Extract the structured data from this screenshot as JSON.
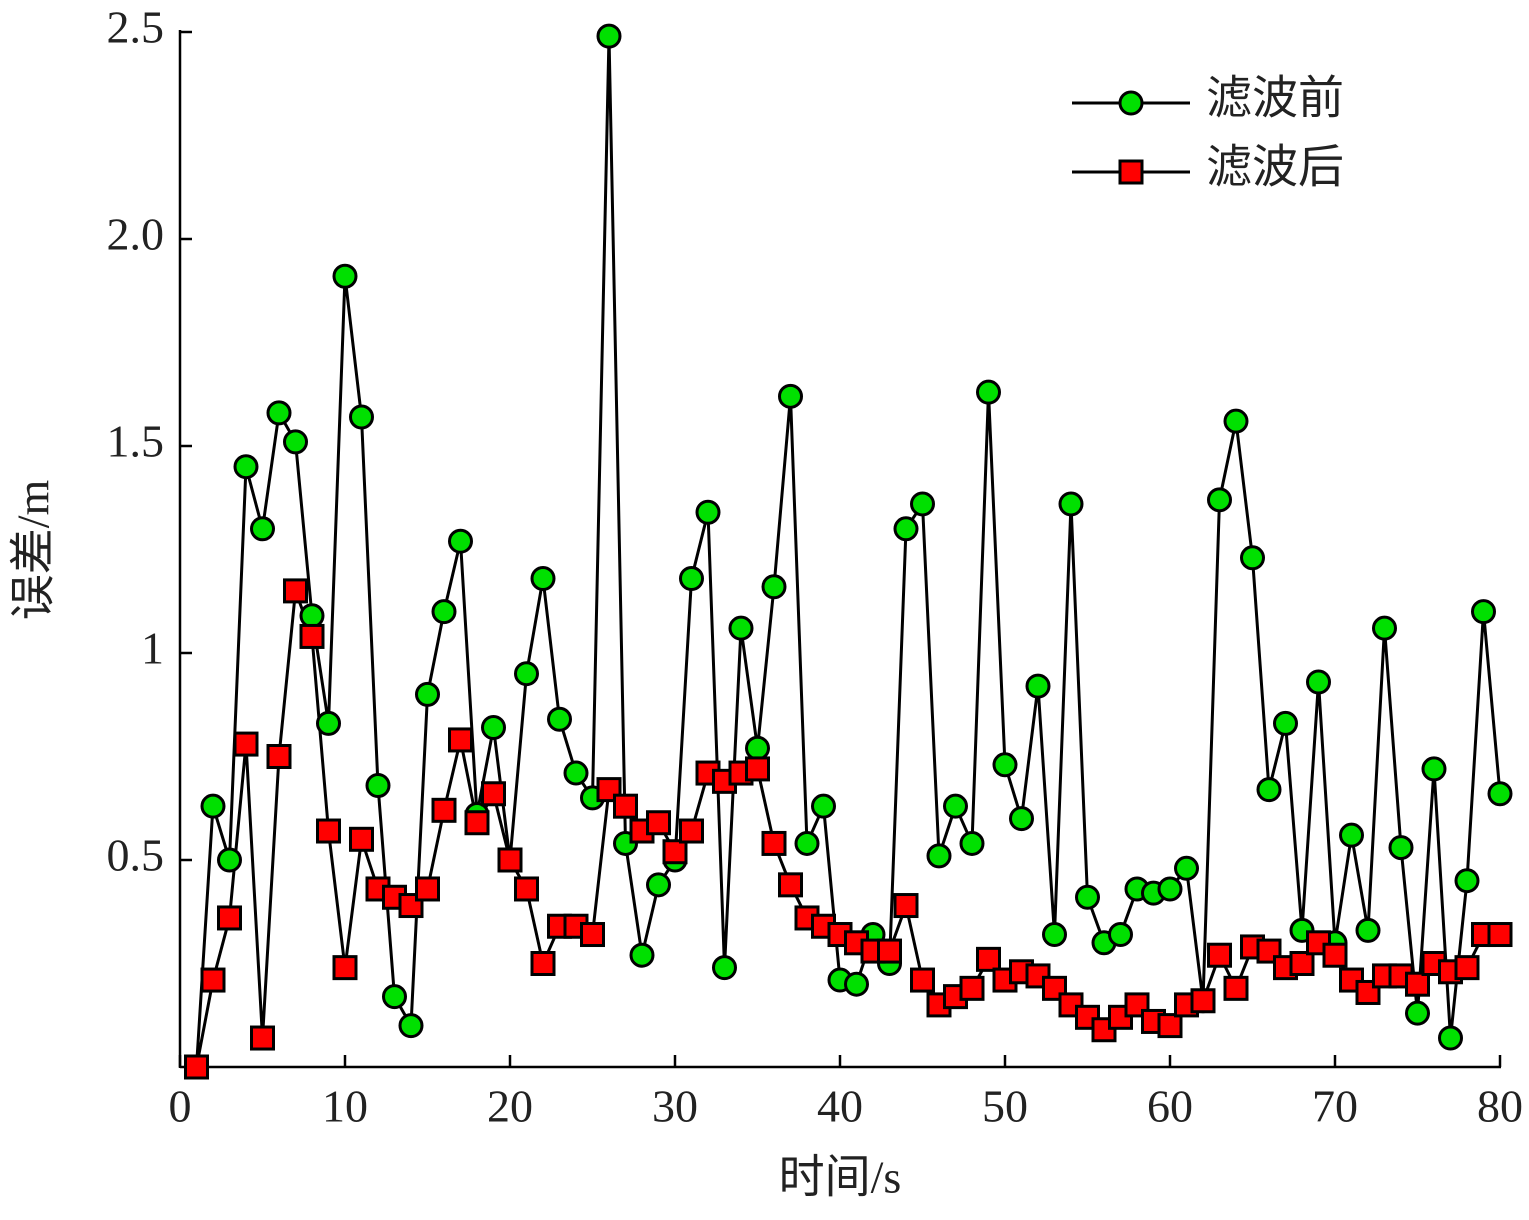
{
  "chart_data": {
    "type": "line",
    "xlabel": "时间/s",
    "ylabel": "误差/m",
    "x": [
      1,
      2,
      3,
      4,
      5,
      6,
      7,
      8,
      9,
      10,
      11,
      12,
      13,
      14,
      15,
      16,
      17,
      18,
      19,
      20,
      21,
      22,
      23,
      24,
      25,
      26,
      27,
      28,
      29,
      30,
      31,
      32,
      33,
      34,
      35,
      36,
      37,
      38,
      39,
      40,
      41,
      42,
      43,
      44,
      45,
      46,
      47,
      48,
      49,
      50,
      51,
      52,
      53,
      54,
      55,
      56,
      57,
      58,
      59,
      60,
      61,
      62,
      63,
      64,
      65,
      66,
      67,
      68,
      69,
      70,
      71,
      72,
      73,
      74,
      75,
      76,
      77,
      78,
      79,
      80
    ],
    "series": [
      {
        "name": "滤波前",
        "color": "#00e000",
        "marker": "circle",
        "values": [
          0.0,
          0.63,
          0.5,
          1.45,
          1.3,
          1.58,
          1.51,
          1.09,
          0.83,
          1.91,
          1.57,
          0.68,
          0.17,
          0.1,
          0.9,
          1.1,
          1.27,
          0.61,
          0.82,
          0.5,
          0.95,
          1.18,
          0.84,
          0.71,
          0.65,
          2.49,
          0.54,
          0.27,
          0.44,
          0.5,
          1.18,
          1.34,
          0.24,
          1.06,
          0.77,
          1.16,
          1.62,
          0.54,
          0.63,
          0.21,
          0.2,
          0.32,
          0.25,
          1.3,
          1.36,
          0.51,
          0.63,
          0.54,
          1.63,
          0.73,
          0.6,
          0.92,
          0.32,
          1.36,
          0.41,
          0.3,
          0.32,
          0.43,
          0.42,
          0.43,
          0.48,
          0.16,
          1.37,
          1.56,
          1.23,
          0.67,
          0.83,
          0.33,
          0.93,
          0.3,
          0.56,
          0.33,
          1.06,
          0.53,
          0.13,
          0.72,
          0.07,
          0.45,
          1.1,
          0.66
        ]
      },
      {
        "name": "滤波后",
        "color": "#ff0000",
        "marker": "square",
        "values": [
          0.0,
          0.21,
          0.36,
          0.78,
          0.07,
          0.75,
          1.15,
          1.04,
          0.57,
          0.24,
          0.55,
          0.43,
          0.41,
          0.39,
          0.43,
          0.62,
          0.79,
          0.59,
          0.66,
          0.5,
          0.43,
          0.25,
          0.34,
          0.34,
          0.32,
          0.67,
          0.63,
          0.57,
          0.59,
          0.52,
          0.57,
          0.71,
          0.69,
          0.71,
          0.72,
          0.54,
          0.44,
          0.36,
          0.34,
          0.32,
          0.3,
          0.28,
          0.28,
          0.39,
          0.21,
          0.15,
          0.17,
          0.19,
          0.26,
          0.21,
          0.23,
          0.22,
          0.19,
          0.15,
          0.12,
          0.09,
          0.12,
          0.15,
          0.11,
          0.1,
          0.15,
          0.16,
          0.27,
          0.19,
          0.29,
          0.28,
          0.24,
          0.25,
          0.3,
          0.27,
          0.21,
          0.18,
          0.22,
          0.22,
          0.2,
          0.25,
          0.23,
          0.24,
          0.32,
          0.32
        ]
      }
    ],
    "xlim": [
      0,
      80
    ],
    "xticks": [
      0,
      10,
      20,
      30,
      40,
      50,
      60,
      70,
      80
    ],
    "ylim": [
      0,
      2.5
    ],
    "yticks": [
      0.5,
      1,
      {
        "value": 1.5,
        "label": "1.5"
      },
      {
        "value": 2,
        "label": "2.0"
      },
      2.5
    ],
    "grid": false,
    "legend": "upper right"
  }
}
